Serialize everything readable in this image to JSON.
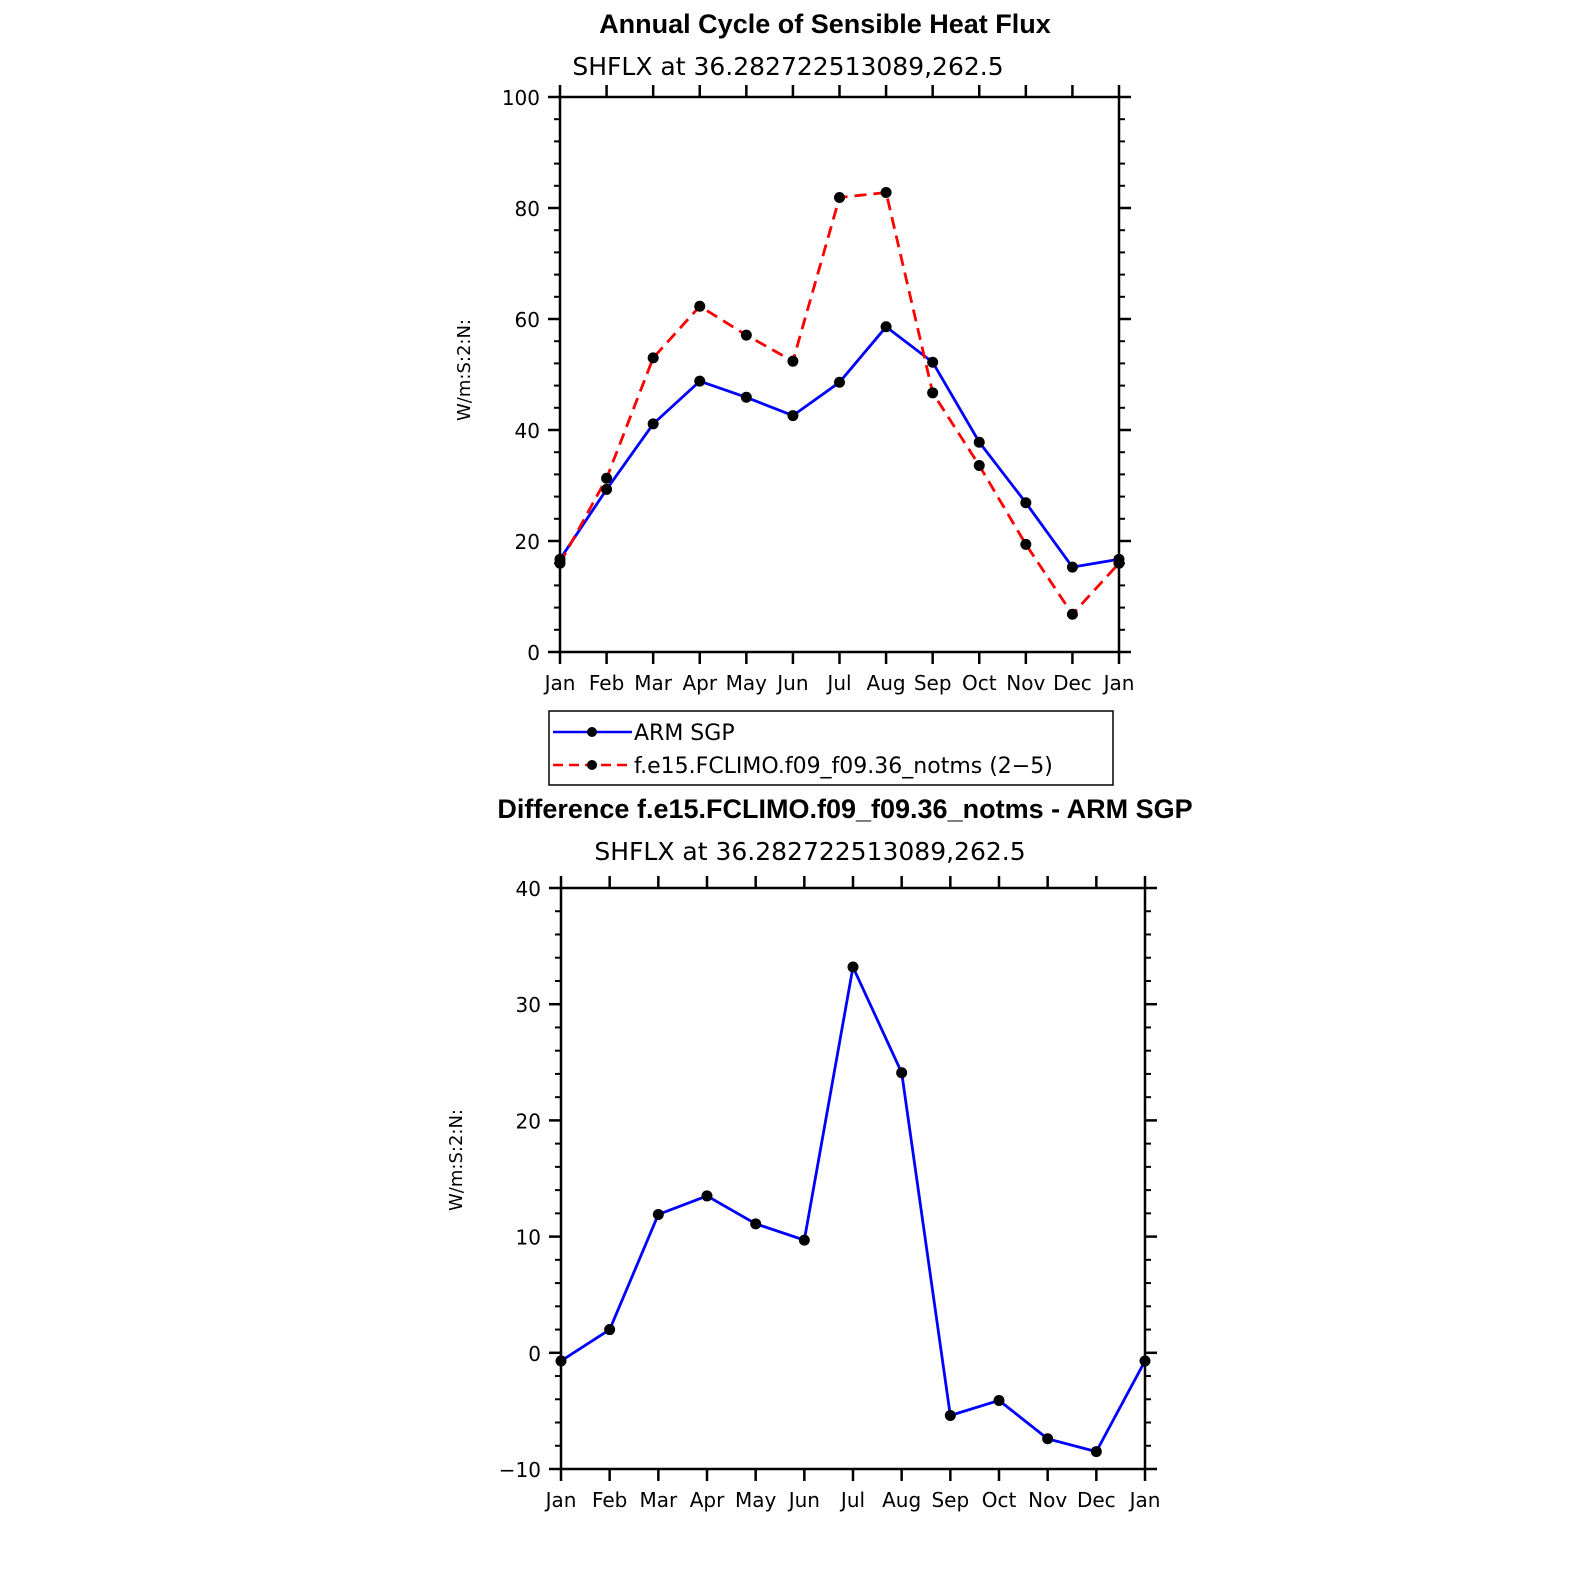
{
  "chart_data": [
    {
      "type": "line",
      "title": "Annual Cycle of Sensible Heat Flux",
      "subtitle": "SHFLX at 36.282722513089,262.5",
      "ylabel": "W/m:S:2:N:",
      "xlabel": "",
      "categories": [
        "Jan",
        "Feb",
        "Mar",
        "Apr",
        "May",
        "Jun",
        "Jul",
        "Aug",
        "Sep",
        "Oct",
        "Nov",
        "Dec",
        "Jan"
      ],
      "ylim": [
        0,
        100
      ],
      "yticks": [
        "0",
        "20",
        "40",
        "60",
        "80",
        "100"
      ],
      "series": [
        {
          "name": "ARM SGP",
          "color": "#0000ff",
          "style": "solid",
          "values": [
            16.7,
            29.3,
            41.1,
            48.8,
            45.9,
            42.6,
            48.6,
            58.6,
            52.2,
            37.8,
            26.9,
            15.3,
            16.7
          ]
        },
        {
          "name": "f.e15.FCLIMO.f09_f09.36_notms (2−5)",
          "color": "#ff0000",
          "style": "dashed",
          "values": [
            16.0,
            31.3,
            53.0,
            62.3,
            57.1,
            52.4,
            81.9,
            82.8,
            46.7,
            33.6,
            19.4,
            6.8,
            16.0
          ]
        }
      ],
      "legend": "below"
    },
    {
      "type": "line",
      "title": "Difference f.e15.FCLIMO.f09_f09.36_notms - ARM SGP",
      "subtitle": "SHFLX at 36.282722513089,262.5",
      "ylabel": "W/m:S:2:N:",
      "xlabel": "",
      "categories": [
        "Jan",
        "Feb",
        "Mar",
        "Apr",
        "May",
        "Jun",
        "Jul",
        "Aug",
        "Sep",
        "Oct",
        "Nov",
        "Dec",
        "Jan"
      ],
      "ylim": [
        -10,
        40
      ],
      "yticks": [
        "−10",
        "0",
        "10",
        "20",
        "30",
        "40"
      ],
      "series": [
        {
          "color": "#0000ff",
          "style": "solid",
          "values": [
            -0.7,
            2.0,
            11.9,
            13.5,
            11.1,
            9.7,
            33.2,
            24.1,
            -5.4,
            -4.1,
            -7.4,
            -8.5,
            -0.7
          ]
        }
      ]
    }
  ]
}
